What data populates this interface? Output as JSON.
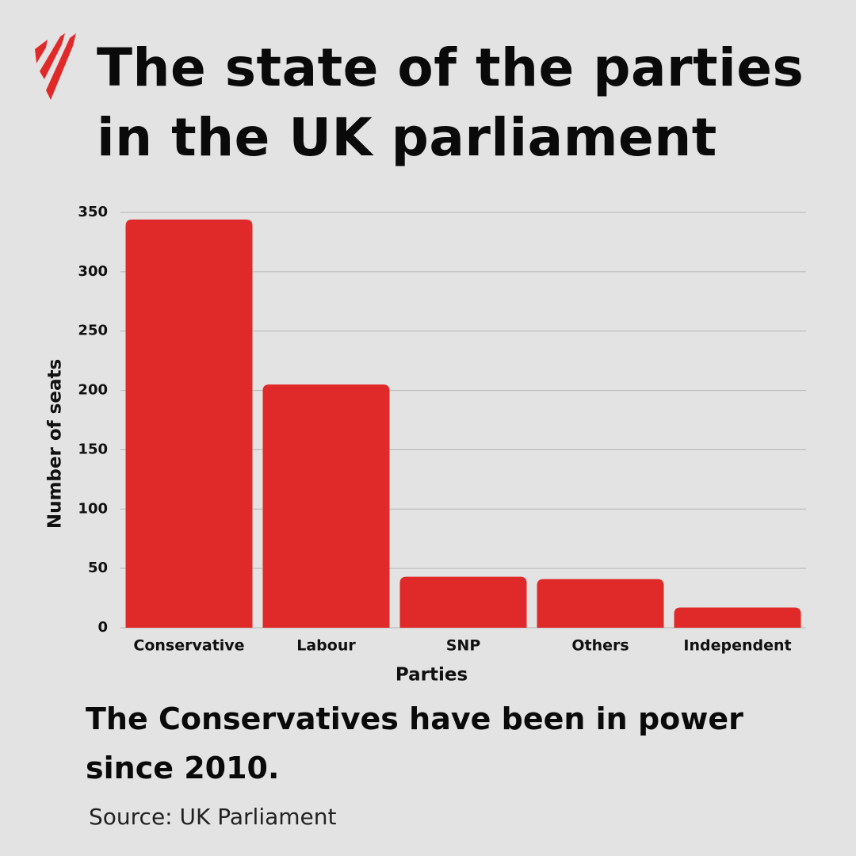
{
  "chart_data": {
    "type": "bar",
    "title": "The state of the parties in the UK parliament",
    "x_label": "Parties",
    "y_label": "Number of seats",
    "categories": [
      "Conservative",
      "Labour",
      "SNP",
      "Others",
      "Independent"
    ],
    "values": [
      344,
      205,
      43,
      41,
      17
    ],
    "color": "#e02a2a",
    "ylim": [
      0,
      350
    ],
    "yticks": [
      0,
      50,
      100,
      150,
      200,
      250,
      300,
      350
    ],
    "grid": true,
    "annotation": "The Conservatives have been in power since 2010.",
    "source": "Source: UK Parliament"
  }
}
